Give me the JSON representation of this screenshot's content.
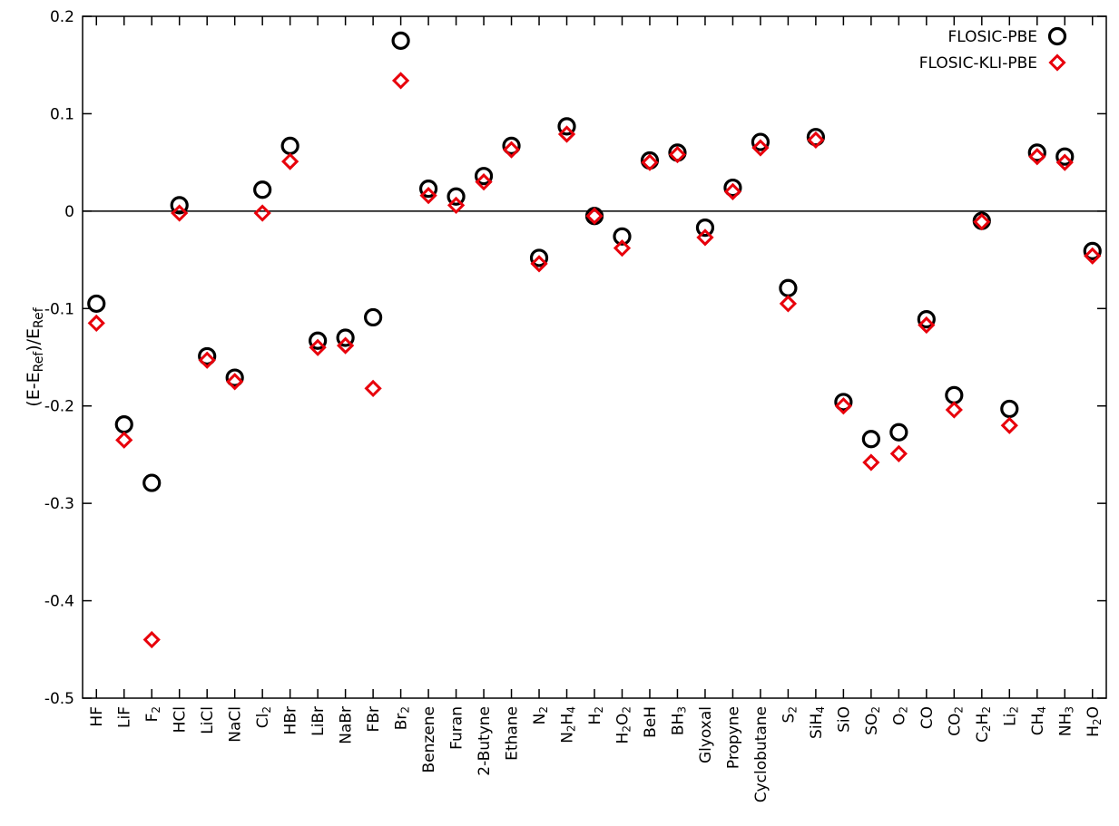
{
  "chart_data": {
    "type": "scatter",
    "title": "",
    "xlabel": "",
    "ylabel": "(E-E_Ref)/E_Ref",
    "ylim": [
      -0.5,
      0.2
    ],
    "yticks": [
      0.2,
      0.1,
      0,
      -0.1,
      -0.2,
      -0.3,
      -0.4,
      -0.5
    ],
    "ytick_labels": [
      "0.2",
      "0.1",
      "0",
      "-0.1",
      "-0.2",
      "-0.3",
      "-0.4",
      "-0.5"
    ],
    "grid": false,
    "zero_line": true,
    "legend_position": "top-right",
    "categories": [
      [
        {
          "t": "HF"
        }
      ],
      [
        {
          "t": "LiF"
        }
      ],
      [
        {
          "t": "F"
        },
        {
          "t": "2",
          "sub": true
        }
      ],
      [
        {
          "t": "HCl"
        }
      ],
      [
        {
          "t": "LiCl"
        }
      ],
      [
        {
          "t": "NaCl"
        }
      ],
      [
        {
          "t": "Cl"
        },
        {
          "t": "2",
          "sub": true
        }
      ],
      [
        {
          "t": "HBr"
        }
      ],
      [
        {
          "t": "LiBr"
        }
      ],
      [
        {
          "t": "NaBr"
        }
      ],
      [
        {
          "t": "FBr"
        }
      ],
      [
        {
          "t": "Br"
        },
        {
          "t": "2",
          "sub": true
        }
      ],
      [
        {
          "t": "Benzene"
        }
      ],
      [
        {
          "t": "Furan"
        }
      ],
      [
        {
          "t": "2-Butyne"
        }
      ],
      [
        {
          "t": "Ethane"
        }
      ],
      [
        {
          "t": "N"
        },
        {
          "t": "2",
          "sub": true
        }
      ],
      [
        {
          "t": "N"
        },
        {
          "t": "2",
          "sub": true
        },
        {
          "t": "H"
        },
        {
          "t": "4",
          "sub": true
        }
      ],
      [
        {
          "t": "H"
        },
        {
          "t": "2",
          "sub": true
        }
      ],
      [
        {
          "t": "H"
        },
        {
          "t": "2",
          "sub": true
        },
        {
          "t": "O"
        },
        {
          "t": "2",
          "sub": true
        }
      ],
      [
        {
          "t": "BeH"
        }
      ],
      [
        {
          "t": "BH"
        },
        {
          "t": "3",
          "sub": true
        }
      ],
      [
        {
          "t": "Glyoxal"
        }
      ],
      [
        {
          "t": "Propyne"
        }
      ],
      [
        {
          "t": "Cyclobutane"
        }
      ],
      [
        {
          "t": "S"
        },
        {
          "t": "2",
          "sub": true
        }
      ],
      [
        {
          "t": "SiH"
        },
        {
          "t": "4",
          "sub": true
        }
      ],
      [
        {
          "t": "SiO"
        }
      ],
      [
        {
          "t": "SO"
        },
        {
          "t": "2",
          "sub": true
        }
      ],
      [
        {
          "t": "O"
        },
        {
          "t": "2",
          "sub": true
        }
      ],
      [
        {
          "t": "CO"
        }
      ],
      [
        {
          "t": "CO"
        },
        {
          "t": "2",
          "sub": true
        }
      ],
      [
        {
          "t": "C"
        },
        {
          "t": "2",
          "sub": true
        },
        {
          "t": "H"
        },
        {
          "t": "2",
          "sub": true
        }
      ],
      [
        {
          "t": "Li"
        },
        {
          "t": "2",
          "sub": true
        }
      ],
      [
        {
          "t": "CH"
        },
        {
          "t": "4",
          "sub": true
        }
      ],
      [
        {
          "t": "NH"
        },
        {
          "t": "3",
          "sub": true
        }
      ],
      [
        {
          "t": "H"
        },
        {
          "t": "2",
          "sub": true
        },
        {
          "t": "O"
        }
      ]
    ],
    "series": [
      {
        "name": "FLOSIC-PBE",
        "marker": "circle",
        "color": "#000000",
        "values": [
          -0.095,
          -0.219,
          -0.279,
          0.006,
          -0.149,
          -0.171,
          0.022,
          0.067,
          -0.133,
          -0.13,
          -0.109,
          0.175,
          0.023,
          0.015,
          0.036,
          0.067,
          -0.048,
          0.087,
          -0.005,
          -0.026,
          0.052,
          0.06,
          -0.017,
          0.024,
          0.071,
          -0.079,
          0.076,
          -0.196,
          -0.234,
          -0.227,
          -0.111,
          -0.189,
          -0.01,
          -0.203,
          0.06,
          0.056,
          -0.041
        ]
      },
      {
        "name": "FLOSIC-KLI-PBE",
        "marker": "diamond",
        "color": "#e8000b",
        "values": [
          -0.115,
          -0.235,
          -0.44,
          -0.002,
          -0.153,
          -0.175,
          -0.002,
          0.051,
          -0.14,
          -0.138,
          -0.182,
          0.134,
          0.016,
          0.006,
          0.03,
          0.063,
          -0.054,
          0.079,
          -0.005,
          -0.038,
          0.05,
          0.058,
          -0.027,
          0.02,
          0.065,
          -0.095,
          0.073,
          -0.2,
          -0.258,
          -0.249,
          -0.117,
          -0.204,
          -0.011,
          -0.22,
          0.056,
          0.05,
          -0.046
        ]
      }
    ]
  }
}
